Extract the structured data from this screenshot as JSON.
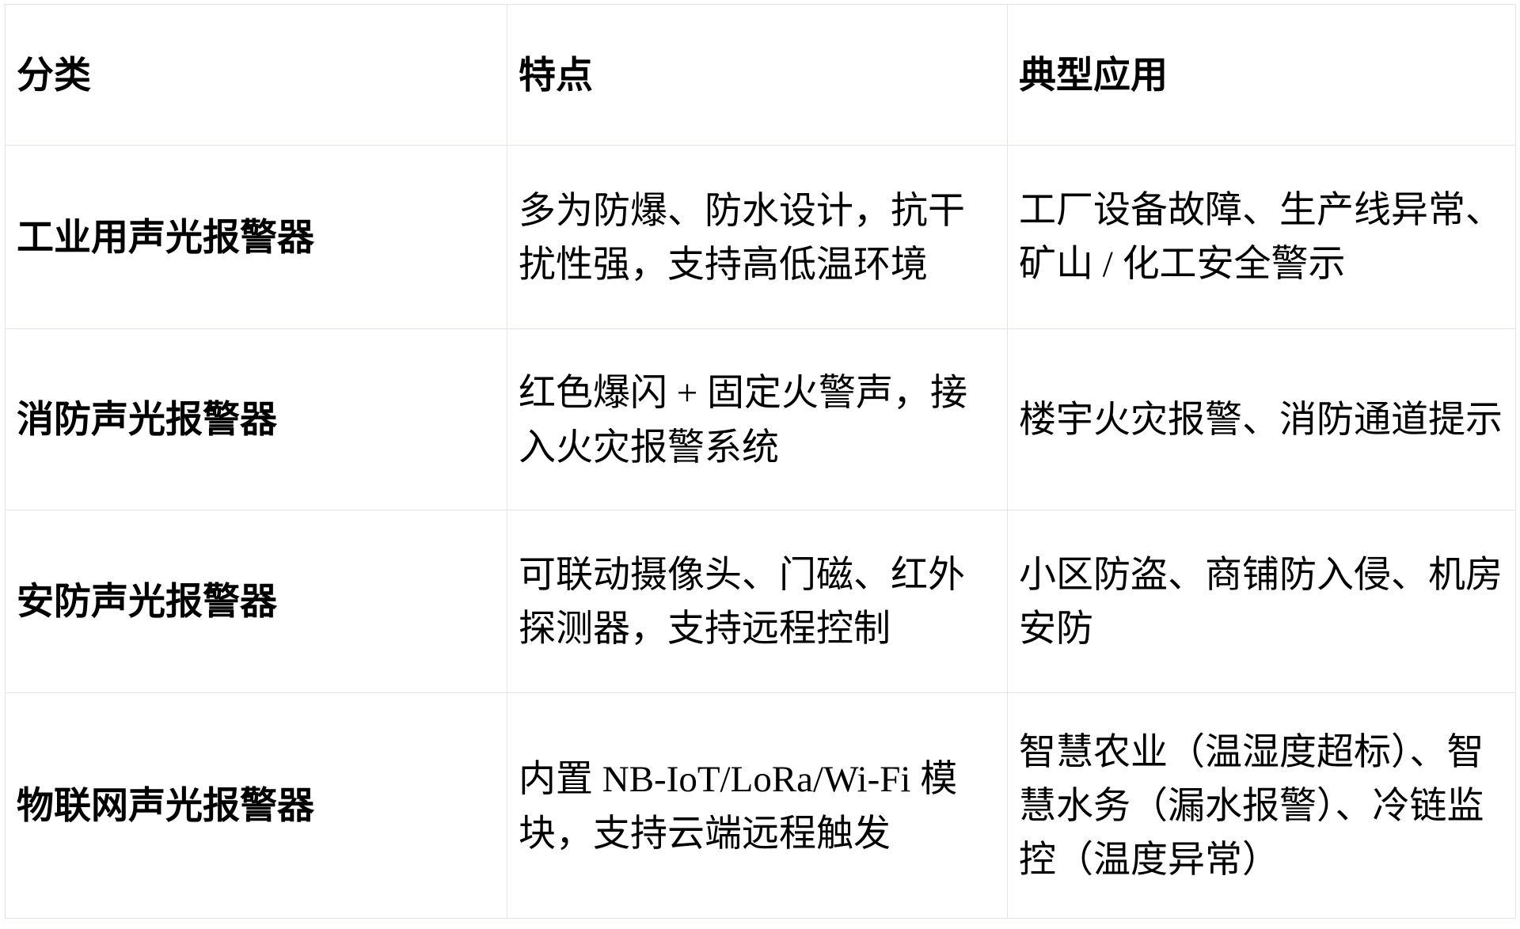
{
  "page": {
    "background_color": "#ffffff",
    "text_color": "#000000",
    "border_color": "#e3e3e9"
  },
  "table": {
    "header": {
      "category": "分类",
      "features": "特点",
      "applications": "典型应用"
    },
    "rows": [
      {
        "category": "工业用声光报警器",
        "features": "多为防爆、防水设计，抗干扰性强，支持高低温环境",
        "applications": "工厂设备故障、生产线异常、矿山 / 化工安全警示"
      },
      {
        "category": "消防声光报警器",
        "features": "红色爆闪 + 固定火警声，接入火灾报警系统",
        "applications": "楼宇火灾报警、消防通道提示"
      },
      {
        "category": "安防声光报警器",
        "features": "可联动摄像头、门磁、红外探测器，支持远程控制",
        "applications": "小区防盗、商铺防入侵、机房安防"
      },
      {
        "category": "物联网声光报警器",
        "features": "内置 NB-IoT/LoRa/Wi-Fi 模块，支持云端远程触发",
        "applications": "智慧农业（温湿度超标）、智慧水务（漏水报警）、冷链监控（温度异常）"
      }
    ]
  }
}
